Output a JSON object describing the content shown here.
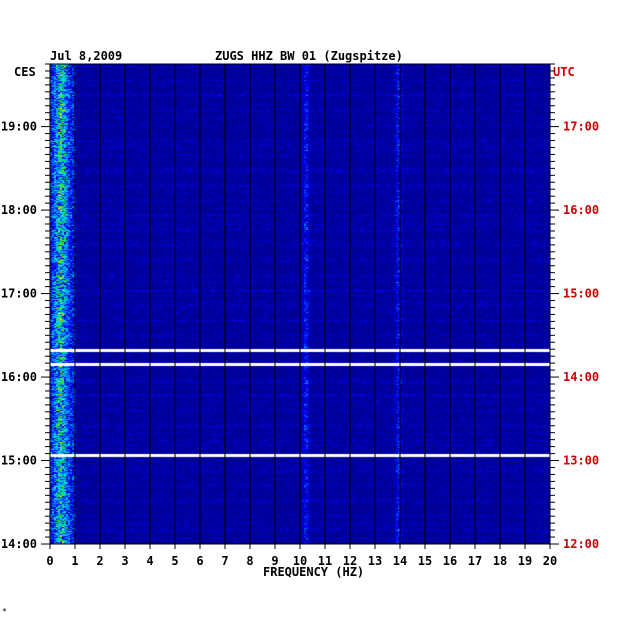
{
  "chart_data": {
    "type": "heatmap",
    "date": "Jul 8,2009",
    "title": "ZUGS HHZ BW 01 (Zugspitze)",
    "xlabel": "FREQUENCY (HZ)",
    "xlim": [
      0,
      20
    ],
    "x_ticks": [
      "0",
      "1",
      "2",
      "3",
      "4",
      "5",
      "6",
      "7",
      "8",
      "9",
      "10",
      "11",
      "12",
      "13",
      "14",
      "15",
      "16",
      "17",
      "18",
      "19",
      "20"
    ],
    "left_axis_label": "CES",
    "right_axis_label": "UTC",
    "left_ticks": [
      "19:00",
      "18:00",
      "17:00",
      "16:00",
      "15:00",
      "14:00"
    ],
    "right_ticks": [
      "17:00",
      "16:00",
      "15:00",
      "14:00",
      "13:00",
      "12:00"
    ],
    "time_range_ces": [
      "14:00",
      "19:45"
    ],
    "colors": {
      "background": "#000099",
      "gap": "#ffffff",
      "utc_text": "#cc0000",
      "text": "#000000"
    },
    "data_gaps_ces": [
      "16:20",
      "16:10",
      "15:05"
    ],
    "hot_bands_hz": [
      0.4,
      10.2,
      13.9
    ],
    "corner_mark": "*"
  }
}
